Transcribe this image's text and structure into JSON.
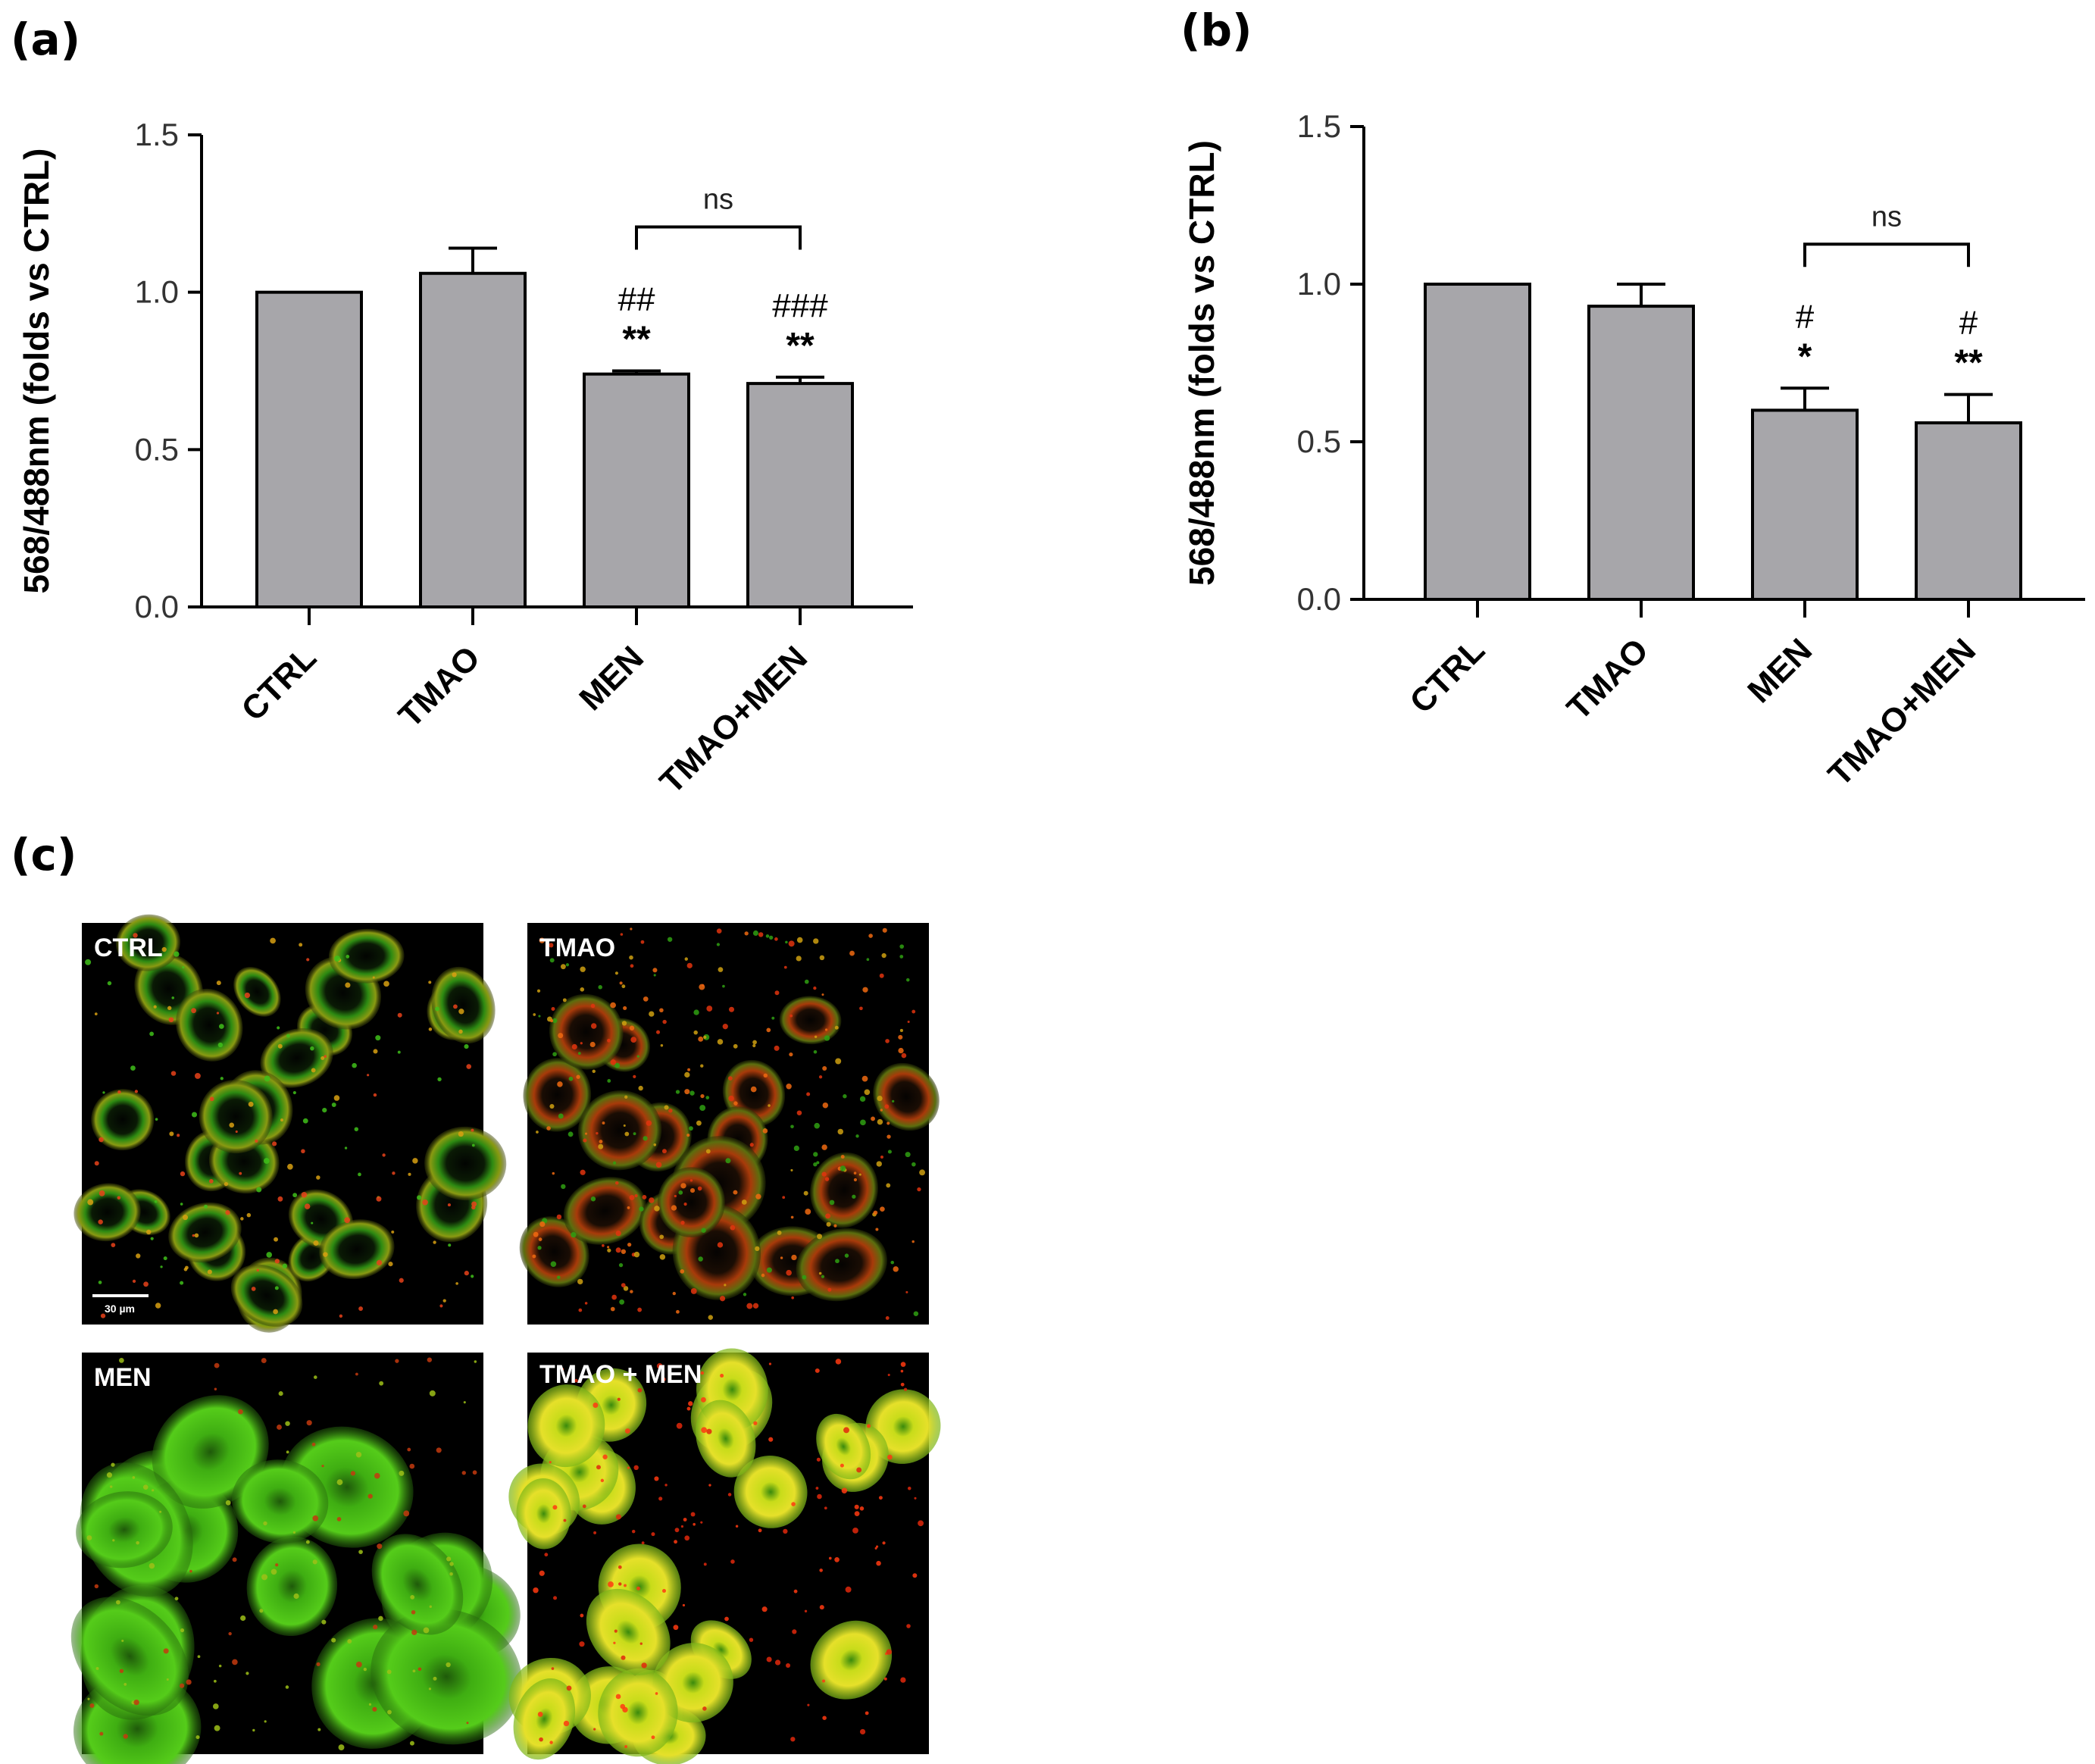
{
  "panels": {
    "a_label": "(a)",
    "b_label": "(b)",
    "c_label": "(c)"
  },
  "chart_data": [
    {
      "type": "bar",
      "panel": "a",
      "categories": [
        "CTRL",
        "TMAO",
        "MEN",
        "TMAO+MEN"
      ],
      "values": [
        1.0,
        1.06,
        0.74,
        0.71
      ],
      "errors": [
        0,
        0.08,
        0.01,
        0.02
      ],
      "ylabel": "568/488nm (folds vs CTRL)",
      "ylim": [
        0,
        1.5
      ],
      "yticks": [
        "0.0",
        "0.5",
        "1.0",
        "1.5"
      ],
      "bar_color": "#a7a6aa",
      "annotations": [
        {
          "category": "MEN",
          "hash": "##",
          "stars": "**"
        },
        {
          "category": "TMAO+MEN",
          "hash": "###",
          "stars": "**"
        }
      ],
      "bracket": {
        "from": "MEN",
        "to": "TMAO+MEN",
        "label": "ns"
      }
    },
    {
      "type": "bar",
      "panel": "b",
      "categories": [
        "CTRL",
        "TMAO",
        "MEN",
        "TMAO+MEN"
      ],
      "values": [
        1.0,
        0.93,
        0.6,
        0.56
      ],
      "errors": [
        0,
        0.07,
        0.07,
        0.09
      ],
      "ylabel": "568/488nm (folds vs CTRL)",
      "ylim": [
        0,
        1.5
      ],
      "yticks": [
        "0.0",
        "0.5",
        "1.0",
        "1.5"
      ],
      "bar_color": "#a7a6aa",
      "annotations": [
        {
          "category": "MEN",
          "hash": "#",
          "stars": "*"
        },
        {
          "category": "TMAO+MEN",
          "hash": "#",
          "stars": "**"
        }
      ],
      "bracket": {
        "from": "MEN",
        "to": "TMAO+MEN",
        "label": "ns"
      }
    }
  ],
  "micrographs": [
    {
      "label": "CTRL",
      "style": "sparse"
    },
    {
      "label": "TMAO",
      "style": "reddish"
    },
    {
      "label": "MEN",
      "style": "green"
    },
    {
      "label": "TMAO + MEN",
      "style": "yellow"
    }
  ],
  "scale_bar_label": "30 µm"
}
